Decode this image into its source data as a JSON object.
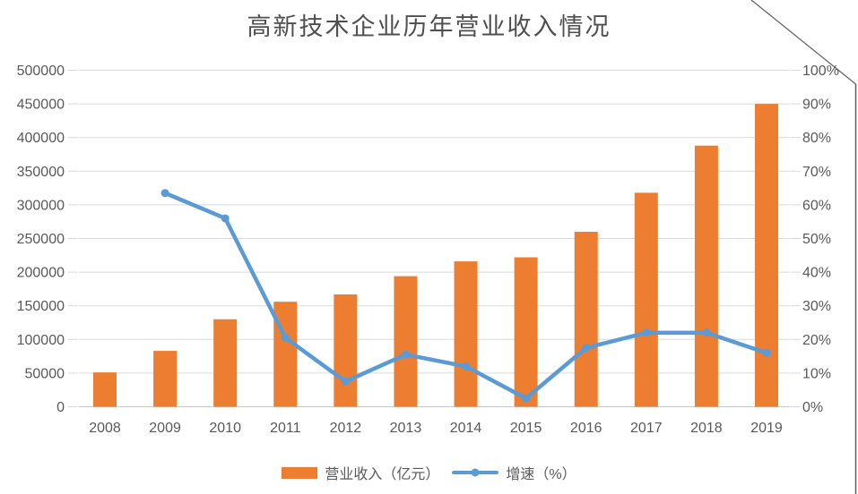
{
  "chart_data": {
    "type": "bar",
    "combo": "bar+line",
    "title": "高新技术企业历年营业收入情况",
    "categories": [
      "2008",
      "2009",
      "2010",
      "2011",
      "2012",
      "2013",
      "2014",
      "2015",
      "2016",
      "2017",
      "2018",
      "2019"
    ],
    "series": [
      {
        "name": "营业收入（亿元）",
        "type": "bar",
        "axis": "left",
        "color": "#ED7D31",
        "values": [
          51000,
          83000,
          130000,
          156000,
          167000,
          194000,
          216000,
          222000,
          260000,
          318000,
          388000,
          450000
        ]
      },
      {
        "name": "增速（%）",
        "type": "line",
        "axis": "right",
        "color": "#5B9BD5",
        "values": [
          null,
          63.5,
          56,
          20.5,
          7.5,
          15.5,
          12,
          2.5,
          17.5,
          22,
          22,
          16
        ]
      }
    ],
    "left_axis": {
      "min": 0,
      "max": 500000,
      "step": 50000,
      "tick_labels": [
        "0",
        "50000",
        "100000",
        "150000",
        "200000",
        "250000",
        "300000",
        "350000",
        "400000",
        "450000",
        "500000"
      ]
    },
    "right_axis": {
      "min": 0,
      "max": 100,
      "step": 10,
      "tick_labels": [
        "0%",
        "10%",
        "20%",
        "30%",
        "40%",
        "50%",
        "60%",
        "70%",
        "80%",
        "90%",
        "100%"
      ]
    },
    "grid": true,
    "legend_position": "bottom",
    "colors": {
      "bar": "#ED7D31",
      "line": "#5B9BD5",
      "gridline": "#D9D9D9",
      "axis_text": "#595959",
      "title_text": "#4f4f4f",
      "artifact_line": "#4a4a4a"
    }
  }
}
